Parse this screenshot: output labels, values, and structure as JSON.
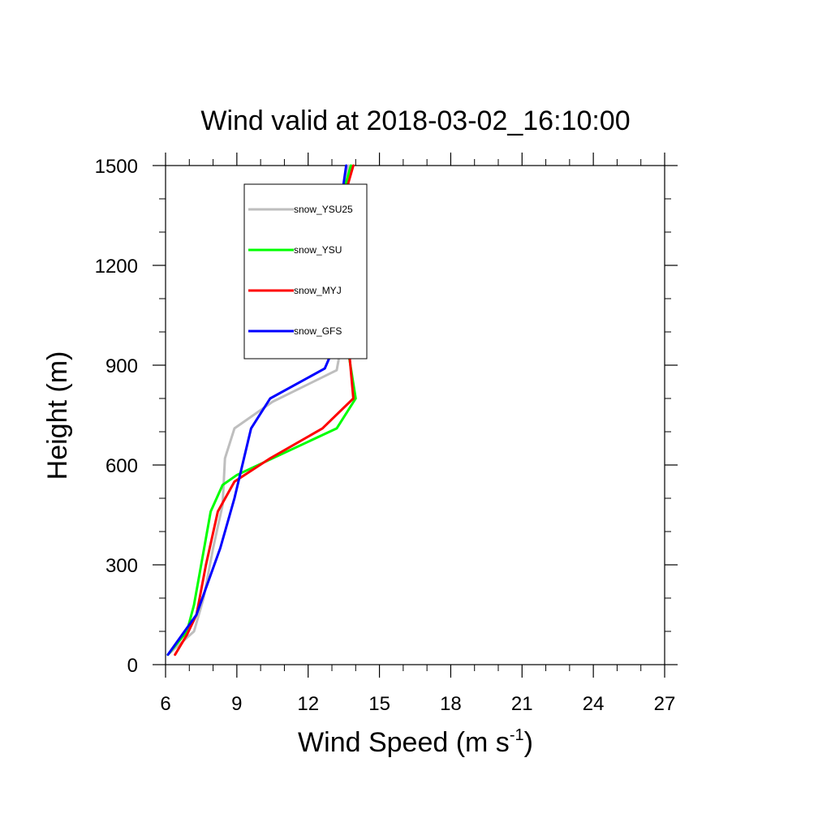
{
  "chart_data": {
    "type": "line",
    "title": "Wind valid at 2018-03-02_16:10:00",
    "xlabel": {
      "main": "Wind Speed (m s",
      "sup": "-1",
      "close": ")"
    },
    "ylabel": "Height (m)",
    "xlim": [
      6,
      27
    ],
    "ylim": [
      0,
      1500
    ],
    "xticks": [
      6,
      9,
      12,
      15,
      18,
      21,
      24,
      27
    ],
    "yticks": [
      0,
      300,
      600,
      900,
      1200,
      1500
    ],
    "x_minor_step": 1,
    "y_minor_step": 100,
    "grid": false,
    "legend_position": "top-left",
    "series": [
      {
        "name": "snow_YSU25",
        "color": "#bebebe",
        "points": [
          [
            6.1,
            30
          ],
          [
            7.2,
            100
          ],
          [
            7.6,
            200
          ],
          [
            8.0,
            350
          ],
          [
            8.4,
            480
          ],
          [
            8.5,
            620
          ],
          [
            8.9,
            710
          ],
          [
            10.5,
            790
          ],
          [
            13.2,
            885
          ],
          [
            13.5,
            1000
          ],
          [
            13.1,
            1100
          ],
          [
            13.0,
            1180
          ],
          [
            13.1,
            1300
          ],
          [
            13.5,
            1400
          ],
          [
            13.7,
            1500
          ]
        ]
      },
      {
        "name": "snow_YSU",
        "color": "#00ff00",
        "points": [
          [
            6.1,
            30
          ],
          [
            6.9,
            100
          ],
          [
            7.2,
            180
          ],
          [
            7.5,
            300
          ],
          [
            7.9,
            460
          ],
          [
            8.4,
            540
          ],
          [
            9.0,
            570
          ],
          [
            10.5,
            620
          ],
          [
            13.2,
            710
          ],
          [
            14.0,
            800
          ],
          [
            13.6,
            980
          ],
          [
            13.3,
            1050
          ],
          [
            13.1,
            1150
          ],
          [
            13.1,
            1200
          ],
          [
            13.1,
            1300
          ],
          [
            13.4,
            1400
          ],
          [
            13.8,
            1500
          ]
        ]
      },
      {
        "name": "snow_MYJ",
        "color": "#ff0000",
        "points": [
          [
            6.4,
            30
          ],
          [
            6.9,
            90
          ],
          [
            7.3,
            150
          ],
          [
            7.7,
            300
          ],
          [
            8.2,
            460
          ],
          [
            8.9,
            550
          ],
          [
            10.4,
            620
          ],
          [
            12.6,
            710
          ],
          [
            13.9,
            800
          ],
          [
            13.7,
            960
          ],
          [
            13.3,
            1050
          ],
          [
            13.1,
            1150
          ],
          [
            13.0,
            1200
          ],
          [
            13.1,
            1300
          ],
          [
            13.5,
            1400
          ],
          [
            13.9,
            1500
          ]
        ]
      },
      {
        "name": "snow_GFS",
        "color": "#0000ff",
        "points": [
          [
            6.1,
            30
          ],
          [
            6.8,
            100
          ],
          [
            7.3,
            150
          ],
          [
            7.8,
            250
          ],
          [
            8.3,
            350
          ],
          [
            8.9,
            500
          ],
          [
            9.6,
            710
          ],
          [
            10.4,
            800
          ],
          [
            12.7,
            890
          ],
          [
            13.3,
            990
          ],
          [
            13.2,
            1100
          ],
          [
            13.1,
            1200
          ],
          [
            13.2,
            1300
          ],
          [
            13.4,
            1400
          ],
          [
            13.6,
            1500
          ]
        ]
      }
    ]
  }
}
